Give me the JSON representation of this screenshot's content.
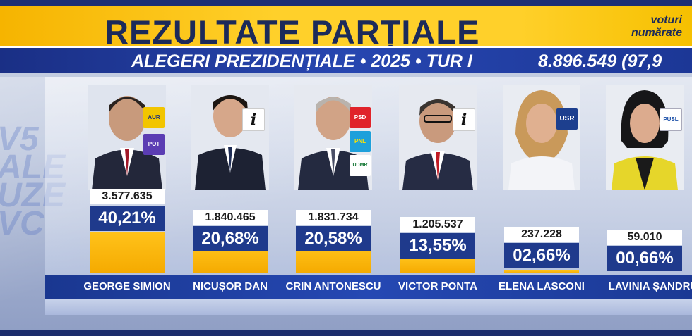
{
  "header": {
    "title": "REZULTATE PARȚIALE",
    "votes_caption_line1": "voturi",
    "votes_caption_line2": "numărate",
    "subtitle": "ALEGERI PREZIDENȚIALE • 2025 • TUR I",
    "total_counted": "8.896.549 (97,9"
  },
  "candidates": [
    {
      "name": "GEORGE SIMION",
      "votes": "3.577.635",
      "percent": "40,21%",
      "share": 40.21,
      "parties": [
        "AUR",
        "POT"
      ]
    },
    {
      "name": "NICUȘOR DAN",
      "votes": "1.840.465",
      "percent": "20,68%",
      "share": 20.68,
      "parties": [
        "i"
      ]
    },
    {
      "name": "CRIN ANTONESCU",
      "votes": "1.831.734",
      "percent": "20,58%",
      "share": 20.58,
      "parties": [
        "PSD",
        "PNL",
        "UDMR"
      ]
    },
    {
      "name": "VICTOR PONTA",
      "votes": "1.205.537",
      "percent": "13,55%",
      "share": 13.55,
      "parties": [
        "i"
      ]
    },
    {
      "name": "ELENA LASCONI",
      "votes": "237.228",
      "percent": "02,66%",
      "share": 2.66,
      "parties": [
        "USR"
      ]
    },
    {
      "name": "LAVINIA ȘANDRU",
      "votes": "59.010",
      "percent": "00,66%",
      "share": 0.66,
      "parties": [
        "PUSL"
      ]
    }
  ],
  "colors": {
    "header_yellow": "#ffd02a",
    "header_blue": "#2746b0",
    "bar_yellow": "#f5aa00",
    "percent_box": "#1f3a8c"
  },
  "icons": [
    "aur-logo-icon",
    "pot-logo-icon",
    "independent-icon",
    "psd-logo-icon",
    "pnl-logo-icon",
    "udmr-logo-icon",
    "usr-logo-icon",
    "pusl-logo-icon"
  ]
}
